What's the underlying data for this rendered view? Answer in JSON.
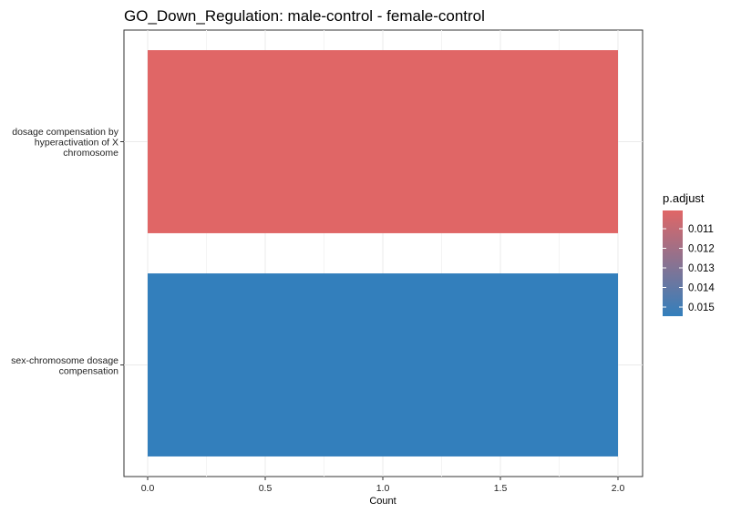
{
  "chart_data": {
    "type": "bar",
    "orientation": "horizontal",
    "title": "GO_Down_Regulation: male-control - female-control",
    "xlabel": "Count",
    "ylabel": "",
    "xlim": [
      0,
      2.1
    ],
    "xticks": [
      "0.0",
      "0.5",
      "1.0",
      "1.5",
      "2.0"
    ],
    "grid": true,
    "categories": [
      [
        "dosage compensation by",
        "hyperactivation of X",
        "chromosome"
      ],
      [
        "sex-chromosome dosage",
        "compensation"
      ]
    ],
    "values": [
      2,
      2
    ],
    "p_adjust": [
      0.0105,
      0.0153
    ],
    "colors": [
      "#e06666",
      "#337fbc"
    ],
    "legend": {
      "title": "p.adjust",
      "position": "right",
      "ticks": [
        "0.011",
        "0.012",
        "0.013",
        "0.014",
        "0.015"
      ],
      "gradient": [
        "#e06666",
        "#337fbc"
      ]
    }
  }
}
